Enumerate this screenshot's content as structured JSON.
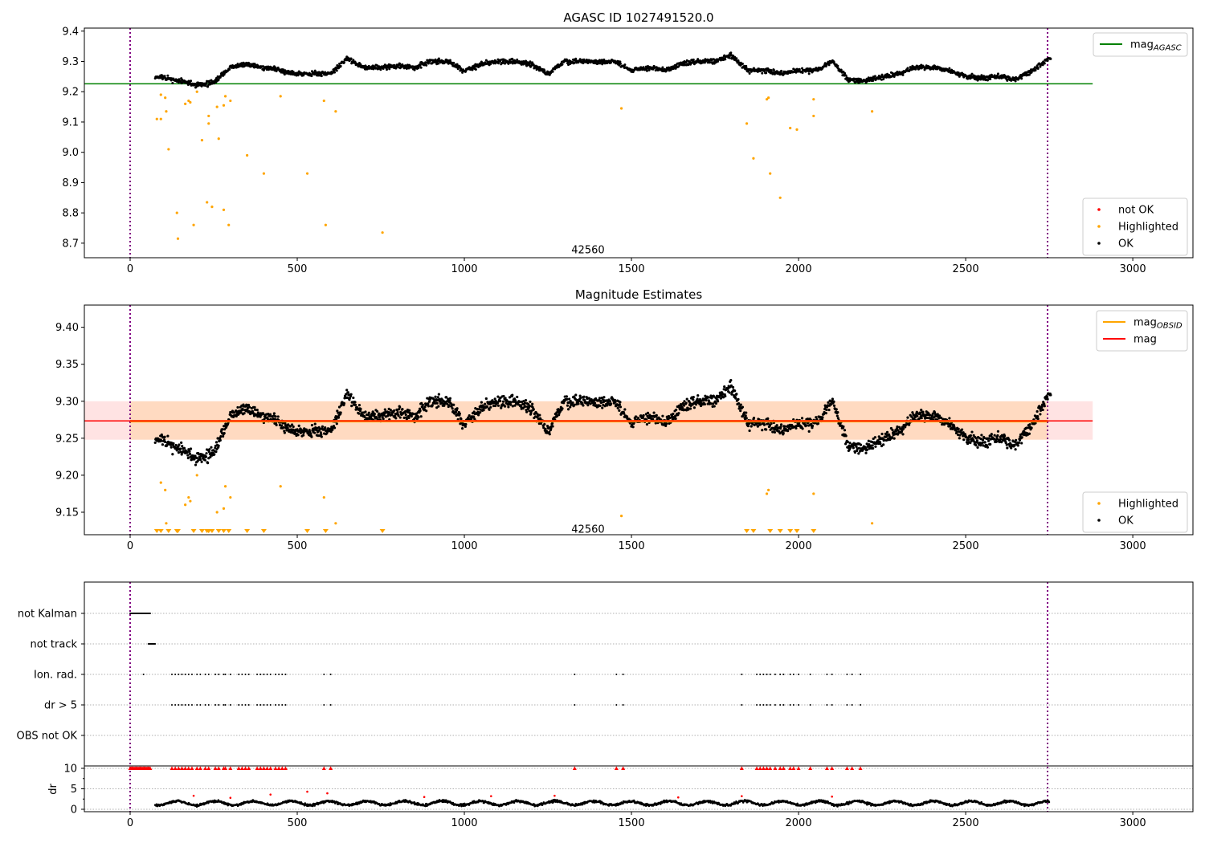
{
  "chart_data": [
    {
      "type": "scatter",
      "title": "AGASC ID 1027491520.0",
      "xlim": [
        -137,
        3180
      ],
      "ylim": [
        8.652,
        9.41
      ],
      "xticks": [
        "0",
        "500",
        "1000",
        "1500",
        "2000",
        "2500",
        "3000"
      ],
      "xtick_values": [
        0,
        500,
        1000,
        1500,
        2000,
        2500,
        3000
      ],
      "yticks": [
        "8.7",
        "8.8",
        "8.9",
        "9.0",
        "9.1",
        "9.2",
        "9.3",
        "9.4"
      ],
      "ytick_values": [
        8.7,
        8.8,
        8.9,
        9.0,
        9.1,
        9.2,
        9.3,
        9.4
      ],
      "annotation": "42560",
      "annotation_pos": [
        1370,
        8.68
      ],
      "vlines": [
        0,
        2745
      ],
      "mag_agasc": 9.226,
      "mag_agasc_range": [
        -137,
        2880
      ],
      "legend_top": [
        {
          "label": "mag",
          "sub": "AGASC",
          "color": "#008000"
        }
      ],
      "legend_bottom": [
        {
          "label": "not OK",
          "color": "#ff0000"
        },
        {
          "label": "Highlighted",
          "color": "#ffa500"
        },
        {
          "label": "OK",
          "color": "#000000"
        }
      ]
    },
    {
      "type": "scatter",
      "title": "Magnitude Estimates",
      "xlim": [
        -137,
        3180
      ],
      "ylim": [
        9.1196,
        9.43
      ],
      "xticks": [
        "0",
        "500",
        "1000",
        "1500",
        "2000",
        "2500",
        "3000"
      ],
      "xtick_values": [
        0,
        500,
        1000,
        1500,
        2000,
        2500,
        3000
      ],
      "yticks": [
        "9.15",
        "9.20",
        "9.25",
        "9.30",
        "9.35",
        "9.40"
      ],
      "ytick_values": [
        9.15,
        9.2,
        9.25,
        9.3,
        9.35,
        9.4
      ],
      "annotation": "42560",
      "annotation_pos": [
        1370,
        9.128
      ],
      "vlines": [
        0,
        2745
      ],
      "mag": 9.2735,
      "mag_obsid": 9.273,
      "band": [
        9.248,
        9.3
      ],
      "band_range": [
        -137,
        2880
      ],
      "obsid_range": [
        0,
        2745
      ],
      "legend_top": [
        {
          "label": "mag",
          "sub": "OBSID",
          "color": "#ffa500"
        },
        {
          "label": "mag",
          "sub": "",
          "color": "#ff0000"
        }
      ],
      "legend_bottom": [
        {
          "label": "Highlighted",
          "color": "#ffa500"
        },
        {
          "label": "OK",
          "color": "#000000"
        }
      ]
    },
    {
      "type": "scatter",
      "title": "",
      "xlim": [
        -137,
        3180
      ],
      "xticks": [
        "0",
        "500",
        "1000",
        "1500",
        "2000",
        "2500",
        "3000"
      ],
      "xtick_values": [
        0,
        500,
        1000,
        1500,
        2000,
        2500,
        3000
      ],
      "categories": [
        "not Kalman",
        "not track",
        "Ion. rad.",
        "dr > 5",
        "OBS not OK"
      ],
      "ylabel": "dr",
      "dr_yticks": [
        "0",
        "5",
        "10"
      ],
      "dr_ytick_values": [
        0,
        5,
        10
      ],
      "vlines": [
        0,
        2745
      ],
      "not_kalman_range": [
        0,
        60
      ],
      "not_track_range": [
        55,
        75
      ],
      "ion_rad_x": [
        40,
        125,
        135,
        145,
        155,
        165,
        175,
        185,
        200,
        210,
        225,
        235,
        255,
        265,
        280,
        285,
        300,
        325,
        335,
        345,
        355,
        380,
        390,
        400,
        410,
        420,
        435,
        445,
        455,
        465,
        580,
        600,
        1330,
        1455,
        1475,
        1830,
        1875,
        1885,
        1895,
        1905,
        1915,
        1930,
        1945,
        1955,
        1975,
        1985,
        2000,
        2035,
        2085,
        2100,
        2145,
        2160,
        2185
      ],
      "dr_gt5_x": [
        125,
        135,
        145,
        155,
        165,
        175,
        185,
        200,
        210,
        225,
        235,
        255,
        265,
        280,
        285,
        300,
        325,
        335,
        345,
        355,
        380,
        390,
        400,
        410,
        420,
        435,
        445,
        455,
        465,
        580,
        600,
        1330,
        1455,
        1475,
        1830,
        1875,
        1885,
        1895,
        1905,
        1915,
        1930,
        1945,
        1955,
        1975,
        1985,
        2000,
        2035,
        2085,
        2100,
        2145,
        2160,
        2185
      ],
      "dr_range": [
        75,
        2750
      ],
      "dr_typical": 1.5
    }
  ],
  "ok_trend": [
    [
      80,
      9.25
    ],
    [
      150,
      9.235
    ],
    [
      200,
      9.222
    ],
    [
      250,
      9.23
    ],
    [
      300,
      9.28
    ],
    [
      350,
      9.29
    ],
    [
      400,
      9.28
    ],
    [
      450,
      9.27
    ],
    [
      500,
      9.26
    ],
    [
      550,
      9.26
    ],
    [
      600,
      9.26
    ],
    [
      650,
      9.31
    ],
    [
      700,
      9.28
    ],
    [
      750,
      9.28
    ],
    [
      800,
      9.285
    ],
    [
      850,
      9.28
    ],
    [
      900,
      9.3
    ],
    [
      950,
      9.3
    ],
    [
      1000,
      9.27
    ],
    [
      1050,
      9.29
    ],
    [
      1100,
      9.3
    ],
    [
      1150,
      9.3
    ],
    [
      1200,
      9.29
    ],
    [
      1250,
      9.26
    ],
    [
      1300,
      9.3
    ],
    [
      1350,
      9.3
    ],
    [
      1400,
      9.3
    ],
    [
      1450,
      9.3
    ],
    [
      1500,
      9.27
    ],
    [
      1550,
      9.28
    ],
    [
      1600,
      9.27
    ],
    [
      1650,
      9.29
    ],
    [
      1700,
      9.3
    ],
    [
      1750,
      9.3
    ],
    [
      1800,
      9.32
    ],
    [
      1850,
      9.27
    ],
    [
      1900,
      9.27
    ],
    [
      1950,
      9.26
    ],
    [
      2000,
      9.27
    ],
    [
      2050,
      9.27
    ],
    [
      2100,
      9.3
    ],
    [
      2150,
      9.24
    ],
    [
      2200,
      9.235
    ],
    [
      2250,
      9.25
    ],
    [
      2300,
      9.26
    ],
    [
      2350,
      9.28
    ],
    [
      2400,
      9.28
    ],
    [
      2450,
      9.27
    ],
    [
      2500,
      9.25
    ],
    [
      2550,
      9.245
    ],
    [
      2600,
      9.25
    ],
    [
      2650,
      9.24
    ],
    [
      2700,
      9.27
    ],
    [
      2750,
      9.31
    ]
  ],
  "highlighted": [
    [
      80,
      9.11
    ],
    [
      92,
      9.19
    ],
    [
      92,
      9.11
    ],
    [
      105,
      9.18
    ],
    [
      108,
      9.135
    ],
    [
      115,
      9.01
    ],
    [
      140,
      8.8
    ],
    [
      143,
      8.715
    ],
    [
      165,
      9.16
    ],
    [
      175,
      9.17
    ],
    [
      180,
      9.165
    ],
    [
      190,
      8.76
    ],
    [
      200,
      9.2
    ],
    [
      215,
      9.04
    ],
    [
      230,
      8.835
    ],
    [
      235,
      9.12
    ],
    [
      235,
      9.095
    ],
    [
      245,
      8.82
    ],
    [
      260,
      9.15
    ],
    [
      265,
      9.045
    ],
    [
      280,
      9.155
    ],
    [
      280,
      8.81
    ],
    [
      285,
      9.185
    ],
    [
      295,
      8.76
    ],
    [
      300,
      9.17
    ],
    [
      350,
      8.99
    ],
    [
      400,
      8.93
    ],
    [
      450,
      9.185
    ],
    [
      530,
      8.93
    ],
    [
      580,
      9.17
    ],
    [
      585,
      8.76
    ],
    [
      615,
      9.135
    ],
    [
      755,
      8.735
    ],
    [
      1470,
      9.145
    ],
    [
      1845,
      9.095
    ],
    [
      1865,
      8.98
    ],
    [
      1905,
      9.175
    ],
    [
      1910,
      9.18
    ],
    [
      1915,
      8.93
    ],
    [
      1945,
      8.85
    ],
    [
      1975,
      9.08
    ],
    [
      1995,
      9.075
    ],
    [
      2045,
      9.175
    ],
    [
      2045,
      9.12
    ],
    [
      2220,
      9.135
    ]
  ]
}
